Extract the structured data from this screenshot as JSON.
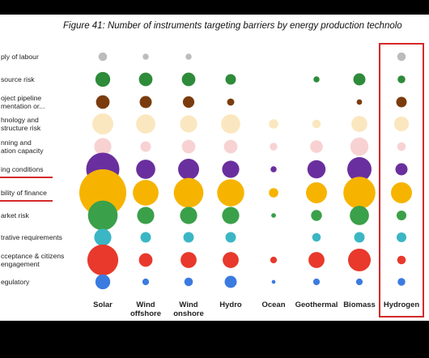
{
  "chart_data": {
    "type": "bubble-matrix",
    "title": "Figure 41: Number of instruments targeting barriers by energy production technolo",
    "columns": [
      "Solar",
      "Wind\noffshore",
      "Wind\nonshore",
      "Hydro",
      "Ocean",
      "Geothermal",
      "Biomass",
      "Hydrogen"
    ],
    "highlighted_column": "Hydrogen",
    "rows": [
      {
        "label": "ply of labour",
        "color": "#bcbcbc",
        "sizes": [
          1,
          0.5,
          0.5,
          0,
          0,
          0,
          0,
          1
        ]
      },
      {
        "label": "source risk",
        "color": "#2e8b3a",
        "sizes": [
          3,
          2.5,
          2.5,
          1.5,
          0,
          0.5,
          2,
          0.8
        ]
      },
      {
        "label": "oject pipeline\nmentation or...",
        "color": "#7a3c0e",
        "sizes": [
          2.5,
          2,
          1.8,
          0.7,
          0,
          0,
          0.4,
          1.5
        ]
      },
      {
        "label": "hnology and\nstructure risk",
        "color": "#fbe7bf",
        "sizes": [
          6,
          5,
          4,
          5,
          1.2,
          1,
          3.5,
          3
        ]
      },
      {
        "label": "nning and\nation capacity",
        "color": "#f8d2d2",
        "sizes": [
          4,
          1.5,
          2.5,
          2.5,
          0.8,
          2.2,
          4.5,
          1
        ]
      },
      {
        "label": "ing conditions",
        "color": "#6a2f9e",
        "sizes": [
          15,
          5,
          6,
          4,
          0.5,
          4.5,
          8,
          2
        ]
      },
      {
        "label": "bility of finance",
        "color": "#f6b400",
        "sizes": [
          30,
          9,
          12,
          10,
          1.2,
          6,
          14,
          6
        ]
      },
      {
        "label": "arket risk",
        "color": "#3aa04a",
        "sizes": [
          12,
          4,
          4,
          4,
          0.3,
          1.6,
          5,
          1.3
        ]
      },
      {
        "label": "trative requirements",
        "color": "#3bb6c4",
        "sizes": [
          4,
          1.5,
          1.5,
          1.5,
          0,
          1,
          1.5,
          1.3
        ]
      },
      {
        "label": "cceptance & citizens\nengagement",
        "color": "#e8392c",
        "sizes": [
          13,
          2.5,
          3.5,
          3.5,
          0.6,
          3.5,
          7,
          1
        ]
      },
      {
        "label": "egulatory",
        "color": "#3b7be0",
        "sizes": [
          3,
          0.6,
          1,
          2,
          0.2,
          0.6,
          0.6,
          0.8
        ]
      }
    ],
    "underlined_rows": [
      "ing conditions",
      "bility of finance"
    ]
  }
}
